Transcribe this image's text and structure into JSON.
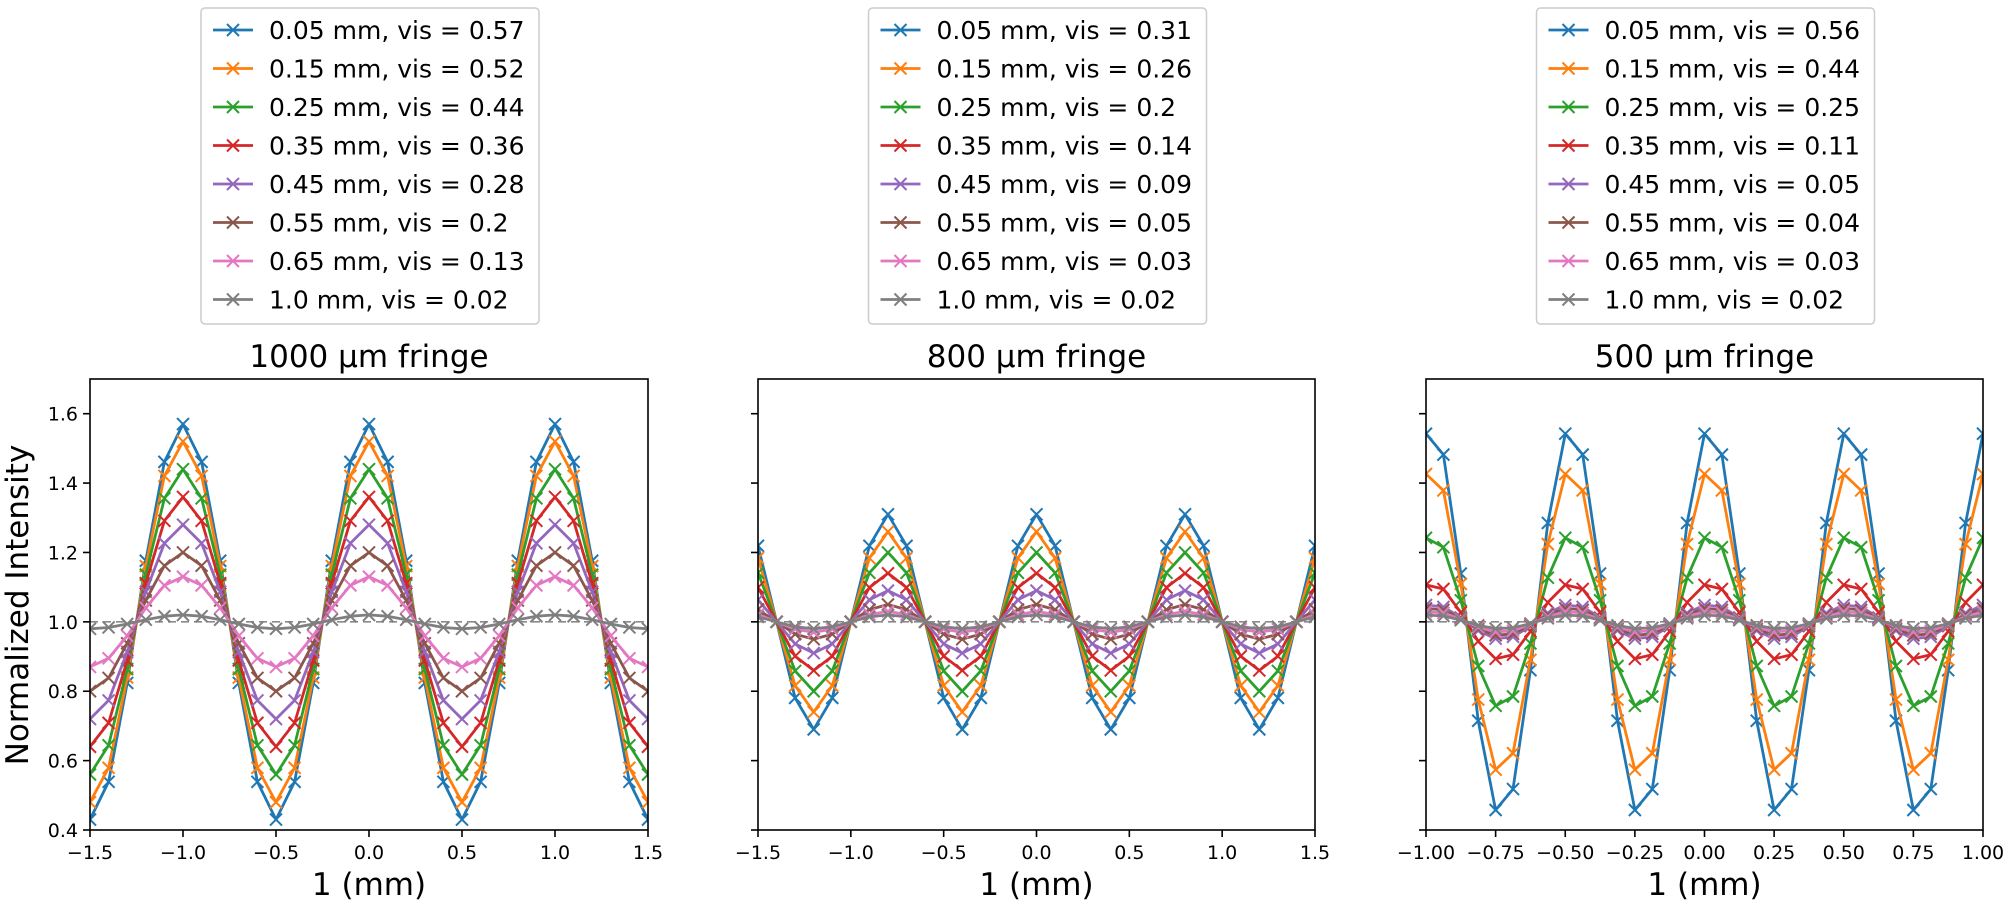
{
  "figure": {
    "ylabel": "Normalized Intensity"
  },
  "chart_data": [
    {
      "type": "line",
      "title": "1000 μm fringe",
      "xlabel": "1 (mm)",
      "ylabel": "Normalized Intensity",
      "xlim": [
        -1.5,
        1.5
      ],
      "ylim": [
        0.4,
        1.7
      ],
      "xticks": [
        -1.5,
        -1.0,
        -0.5,
        0.0,
        0.5,
        1.0,
        1.5
      ],
      "xtick_labels": [
        "−1.5",
        "−1.0",
        "−0.5",
        "0.0",
        "0.5",
        "1.0",
        "1.5"
      ],
      "yticks": [
        0.4,
        0.6,
        0.8,
        1.0,
        1.2,
        1.4,
        1.6
      ],
      "ytick_labels": [
        "0.4",
        "0.6",
        "0.8",
        "1.0",
        "1.2",
        "1.4",
        "1.6"
      ],
      "reference_line": 1.0,
      "period": 1.0,
      "phase": 0.0,
      "sample_step": 0.1,
      "legend": "top",
      "series": [
        {
          "name": "0.05 mm, vis = 0.57",
          "visibility": 0.57,
          "color": "#1f77b4"
        },
        {
          "name": "0.15 mm, vis = 0.52",
          "visibility": 0.52,
          "color": "#ff7f0e"
        },
        {
          "name": "0.25 mm, vis = 0.44",
          "visibility": 0.44,
          "color": "#2ca02c"
        },
        {
          "name": "0.35 mm, vis = 0.36",
          "visibility": 0.36,
          "color": "#d62728"
        },
        {
          "name": "0.45 mm, vis = 0.28",
          "visibility": 0.28,
          "color": "#9467bd"
        },
        {
          "name": "0.55 mm, vis = 0.2",
          "visibility": 0.2,
          "color": "#8c564b"
        },
        {
          "name": "0.65 mm, vis = 0.13",
          "visibility": 0.13,
          "color": "#e377c2"
        },
        {
          "name": "1.0 mm, vis = 0.02",
          "visibility": 0.02,
          "color": "#7f7f7f"
        }
      ]
    },
    {
      "type": "line",
      "title": "800 μm fringe",
      "xlabel": "1 (mm)",
      "ylabel": "",
      "xlim": [
        -1.5,
        1.5
      ],
      "ylim": [
        0.4,
        1.7
      ],
      "xticks": [
        -1.5,
        -1.0,
        -0.5,
        0.0,
        0.5,
        1.0,
        1.5
      ],
      "xtick_labels": [
        "−1.5",
        "−1.0",
        "−0.5",
        "0.0",
        "0.5",
        "1.0",
        "1.5"
      ],
      "yticks": [
        0.4,
        0.6,
        0.8,
        1.0,
        1.2,
        1.4,
        1.6
      ],
      "ytick_labels": [],
      "reference_line": 1.0,
      "period": 0.8,
      "phase": 0.0,
      "sample_step": 0.1,
      "legend": "top",
      "series": [
        {
          "name": "0.05 mm, vis = 0.31",
          "visibility": 0.31,
          "color": "#1f77b4"
        },
        {
          "name": "0.15 mm, vis = 0.26",
          "visibility": 0.26,
          "color": "#ff7f0e"
        },
        {
          "name": "0.25 mm, vis = 0.2",
          "visibility": 0.2,
          "color": "#2ca02c"
        },
        {
          "name": "0.35 mm, vis = 0.14",
          "visibility": 0.14,
          "color": "#d62728"
        },
        {
          "name": "0.45 mm, vis = 0.09",
          "visibility": 0.09,
          "color": "#9467bd"
        },
        {
          "name": "0.55 mm, vis = 0.05",
          "visibility": 0.05,
          "color": "#8c564b"
        },
        {
          "name": "0.65 mm, vis = 0.03",
          "visibility": 0.03,
          "color": "#e377c2"
        },
        {
          "name": "1.0 mm, vis = 0.02",
          "visibility": 0.02,
          "color": "#7f7f7f"
        }
      ]
    },
    {
      "type": "line",
      "title": "500 μm fringe",
      "xlabel": "1 (mm)",
      "ylabel": "",
      "xlim": [
        -1.0,
        1.0
      ],
      "ylim": [
        0.4,
        1.7
      ],
      "xticks": [
        -1.0,
        -0.75,
        -0.5,
        -0.25,
        0.0,
        0.25,
        0.5,
        0.75,
        1.0
      ],
      "xtick_labels": [
        "−1.00",
        "−0.75",
        "−0.50",
        "−0.25",
        "0.00",
        "0.25",
        "0.50",
        "0.75",
        "1.00"
      ],
      "yticks": [
        0.4,
        0.6,
        0.8,
        1.0,
        1.2,
        1.4,
        1.6
      ],
      "ytick_labels": [],
      "reference_line": 1.0,
      "period": 0.5,
      "phase": 0.02,
      "sample_step": 0.0625,
      "legend": "top",
      "series": [
        {
          "name": "0.05 mm, vis = 0.56",
          "visibility": 0.56,
          "color": "#1f77b4"
        },
        {
          "name": "0.15 mm, vis = 0.44",
          "visibility": 0.44,
          "color": "#ff7f0e"
        },
        {
          "name": "0.25 mm, vis = 0.25",
          "visibility": 0.25,
          "color": "#2ca02c"
        },
        {
          "name": "0.35 mm, vis = 0.11",
          "visibility": 0.11,
          "color": "#d62728"
        },
        {
          "name": "0.45 mm, vis = 0.05",
          "visibility": 0.05,
          "color": "#9467bd"
        },
        {
          "name": "0.55 mm, vis = 0.04",
          "visibility": 0.04,
          "color": "#8c564b"
        },
        {
          "name": "0.65 mm, vis = 0.03",
          "visibility": 0.03,
          "color": "#e377c2"
        },
        {
          "name": "1.0 mm, vis = 0.02",
          "visibility": 0.02,
          "color": "#7f7f7f"
        }
      ]
    }
  ]
}
